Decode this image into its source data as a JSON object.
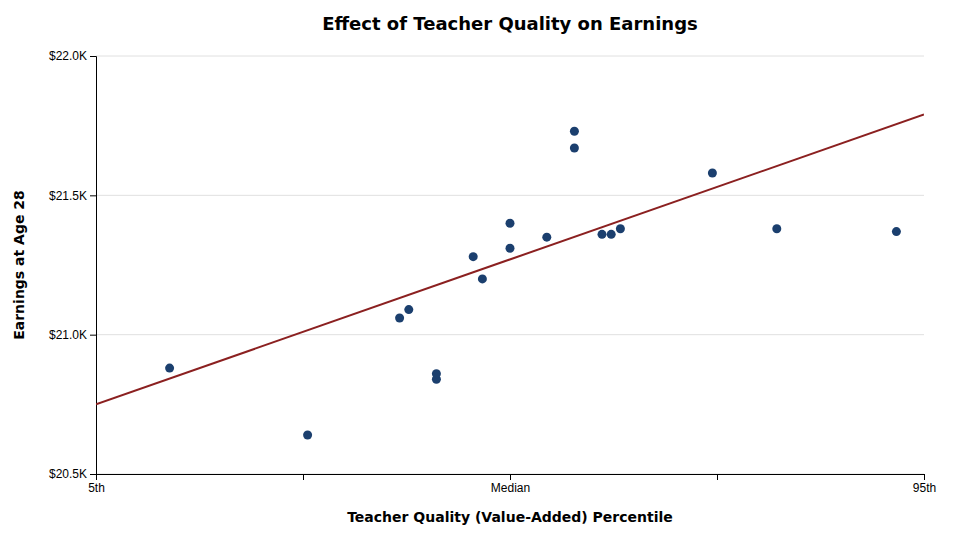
{
  "chart_data": {
    "type": "scatter",
    "title": "Effect of Teacher Quality on Earnings",
    "xlabel": "Teacher Quality (Value-Added) Percentile",
    "ylabel": "Earnings at Age 28",
    "xlim": [
      5,
      95
    ],
    "ylim": [
      20500,
      22000
    ],
    "xticks": [
      {
        "value": 5,
        "label": "5th"
      },
      {
        "value": 27.5,
        "label": null
      },
      {
        "value": 50,
        "label": "Median"
      },
      {
        "value": 72.5,
        "label": null
      },
      {
        "value": 95,
        "label": "95th"
      }
    ],
    "yticks": [
      {
        "value": 20500,
        "label": "$20.5K"
      },
      {
        "value": 21000,
        "label": "$21.0K"
      },
      {
        "value": 21500,
        "label": "$21.5K"
      },
      {
        "value": 22000,
        "label": "$22.0K"
      }
    ],
    "grid": "y",
    "series": [
      {
        "type": "scatter",
        "marker": "circle",
        "color": "#1B3F6E",
        "x": [
          13,
          28,
          38,
          39,
          42,
          42,
          46,
          47,
          50,
          50,
          54,
          57,
          57,
          60,
          61,
          62,
          72,
          79,
          92
        ],
        "values": [
          20880,
          20640,
          21060,
          21090,
          20840,
          20860,
          21280,
          21200,
          21400,
          21310,
          21350,
          21670,
          21730,
          21360,
          21360,
          21380,
          21580,
          21380,
          21370
        ]
      },
      {
        "type": "line",
        "line_style": "solid",
        "color": "#8B2020",
        "x": [
          5,
          95
        ],
        "values": [
          20750,
          21790
        ]
      }
    ]
  }
}
